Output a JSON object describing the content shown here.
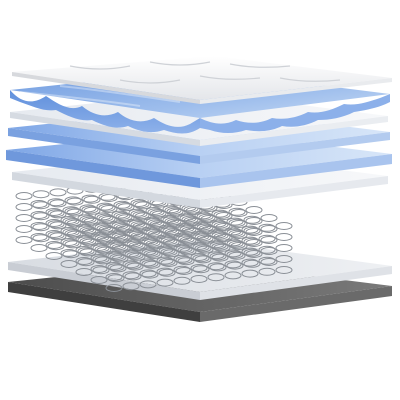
{
  "scene": {
    "subject": "mattress layers",
    "colors": {
      "background": "#ffffff",
      "quilted_top": "#f3f3f3",
      "foam_blue": "#5e8ed8",
      "foam_light_blue": "#bcd3f2",
      "white_layer": "#e9edf4",
      "spring_metal": "#8a8f96",
      "base_grey": "#5f5f5f"
    },
    "layers": [
      {
        "name": "quilted-top-cover",
        "kind": "cover"
      },
      {
        "name": "wavy-gel-foam-layer",
        "kind": "gel-foam"
      },
      {
        "name": "white-padding-layer-1",
        "kind": "padding"
      },
      {
        "name": "blue-foam-layer-1",
        "kind": "foam"
      },
      {
        "name": "blue-foam-layer-2",
        "kind": "foam"
      },
      {
        "name": "white-padding-layer-2",
        "kind": "padding"
      },
      {
        "name": "pocket-spring-unit",
        "kind": "springs"
      },
      {
        "name": "white-bottom-padding",
        "kind": "padding"
      },
      {
        "name": "grey-base-cover",
        "kind": "base"
      }
    ]
  }
}
